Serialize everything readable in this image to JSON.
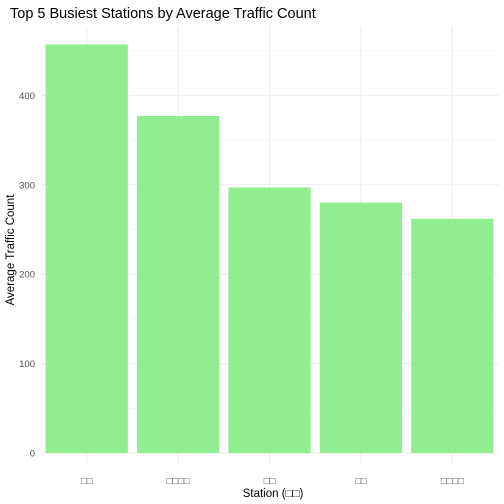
{
  "chart_data": {
    "type": "bar",
    "title": "Top 5 Busiest Stations by Average Traffic Count",
    "xlabel": "Station (□□)",
    "ylabel": "Average Traffic Count",
    "categories": [
      "□□",
      "□□□□",
      "□□",
      "□□",
      "□□□□"
    ],
    "values": [
      457,
      377,
      297,
      280,
      262
    ],
    "ylim": [
      0,
      475
    ],
    "yticks": [
      0,
      100,
      200,
      300,
      400
    ],
    "bar_color": "#90EE90",
    "grid": true,
    "grid_color": "#ebebeb"
  }
}
